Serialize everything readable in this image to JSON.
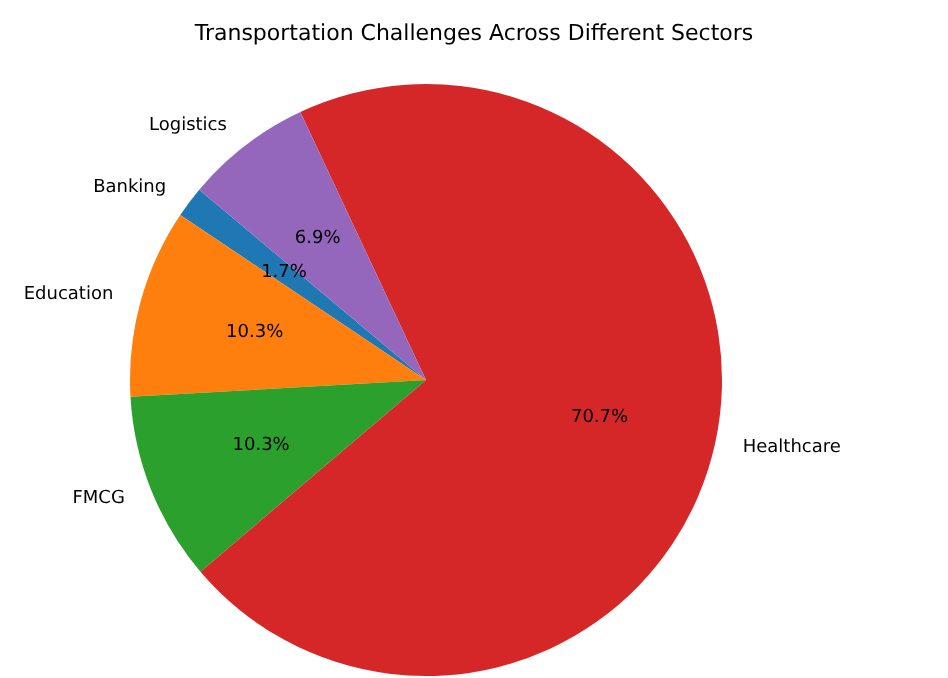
{
  "chart_data": {
    "type": "pie",
    "title": "Transportation Challenges Across Different Sectors",
    "categories": [
      "Banking",
      "Education",
      "FMCG",
      "Healthcare",
      "Logistics"
    ],
    "values": [
      1.7,
      10.3,
      10.3,
      70.7,
      6.9
    ],
    "colors": [
      "#1f77b4",
      "#ff7f0e",
      "#2ca02c",
      "#d62728",
      "#9467bd"
    ],
    "value_labels": [
      "1.7%",
      "10.3%",
      "10.3%",
      "70.7%",
      "6.9%"
    ],
    "legend": false
  }
}
